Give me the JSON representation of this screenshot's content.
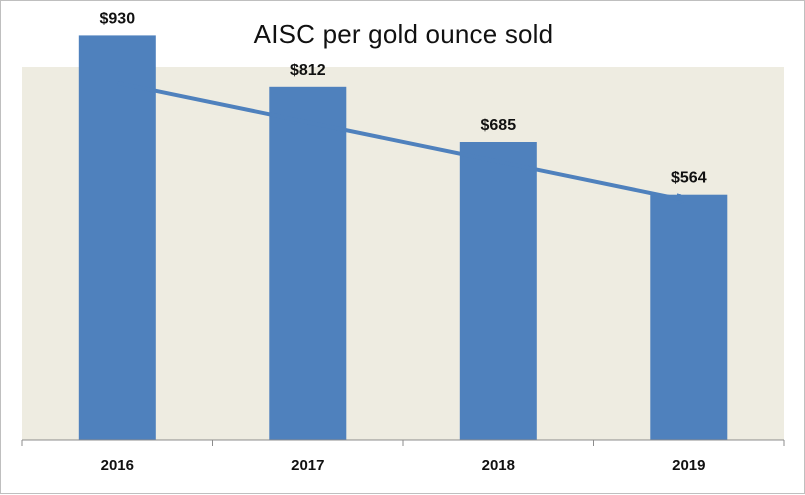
{
  "colors": {
    "plot_background": "#eeece1",
    "bar": "#4f81bd",
    "trend_arrow": "#4f81bd",
    "axis": "#8c8c8c"
  },
  "chart_data": {
    "type": "bar",
    "title": "AISC per gold ounce sold",
    "categories": [
      "2016",
      "2017",
      "2018",
      "2019"
    ],
    "values": [
      930,
      812,
      685,
      564
    ],
    "data_labels": [
      "$930",
      "$812",
      "$685",
      "$564"
    ],
    "xlabel": "",
    "ylabel": "",
    "ylim": [
      0,
      1000
    ],
    "grid": false,
    "legend": "none",
    "annotations": [
      {
        "type": "trend-arrow",
        "direction": "down",
        "from_category": "2016",
        "to_category": "2019"
      }
    ]
  }
}
